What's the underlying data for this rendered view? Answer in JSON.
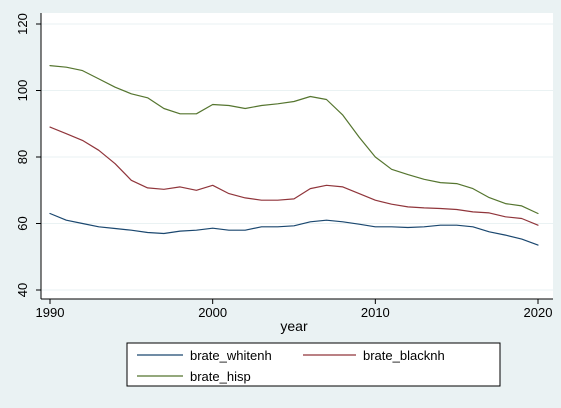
{
  "chart_data": {
    "type": "line",
    "title": "",
    "xlabel": "year",
    "ylabel": "",
    "xlim": [
      1990,
      2020
    ],
    "ylim": [
      40,
      120
    ],
    "xticks": [
      1990,
      2000,
      2010,
      2020
    ],
    "yticks": [
      40,
      60,
      80,
      100,
      120
    ],
    "grid": true,
    "legend_position": "bottom",
    "x": [
      1990,
      1991,
      1992,
      1993,
      1994,
      1995,
      1996,
      1997,
      1998,
      1999,
      2000,
      2001,
      2002,
      2003,
      2004,
      2005,
      2006,
      2007,
      2008,
      2009,
      2010,
      2011,
      2012,
      2013,
      2014,
      2015,
      2016,
      2017,
      2018,
      2019,
      2020
    ],
    "series": [
      {
        "name": "brate_whitenh",
        "color": "#1a476f",
        "values": [
          63,
          61,
          60,
          59,
          58.5,
          58,
          57.3,
          57,
          57.7,
          58,
          58.6,
          58,
          58,
          59,
          59,
          59.3,
          60.5,
          61,
          60.5,
          59.8,
          59,
          59,
          58.8,
          59,
          59.5,
          59.5,
          59,
          57.5,
          56.5,
          55.3,
          53.5
        ]
      },
      {
        "name": "brate_blacknh",
        "color": "#90353b",
        "values": [
          89,
          87,
          85,
          82,
          78,
          73,
          70.7,
          70.3,
          71,
          70,
          71.5,
          69,
          67.7,
          67,
          67,
          67.4,
          70.5,
          71.5,
          71,
          69,
          67,
          65.8,
          65,
          64.7,
          64.5,
          64.2,
          63.5,
          63.2,
          62,
          61.5,
          59.5
        ]
      },
      {
        "name": "brate_hisp",
        "color": "#55752f",
        "values": [
          107.5,
          107,
          106,
          103.5,
          101,
          99,
          97.8,
          94.6,
          93,
          93,
          95.8,
          95.5,
          94.6,
          95.5,
          96,
          96.7,
          98.2,
          97.3,
          92.6,
          86,
          80,
          76.3,
          74.7,
          73.3,
          72.3,
          72,
          70.5,
          67.8,
          66,
          65.3,
          63
        ]
      }
    ]
  }
}
